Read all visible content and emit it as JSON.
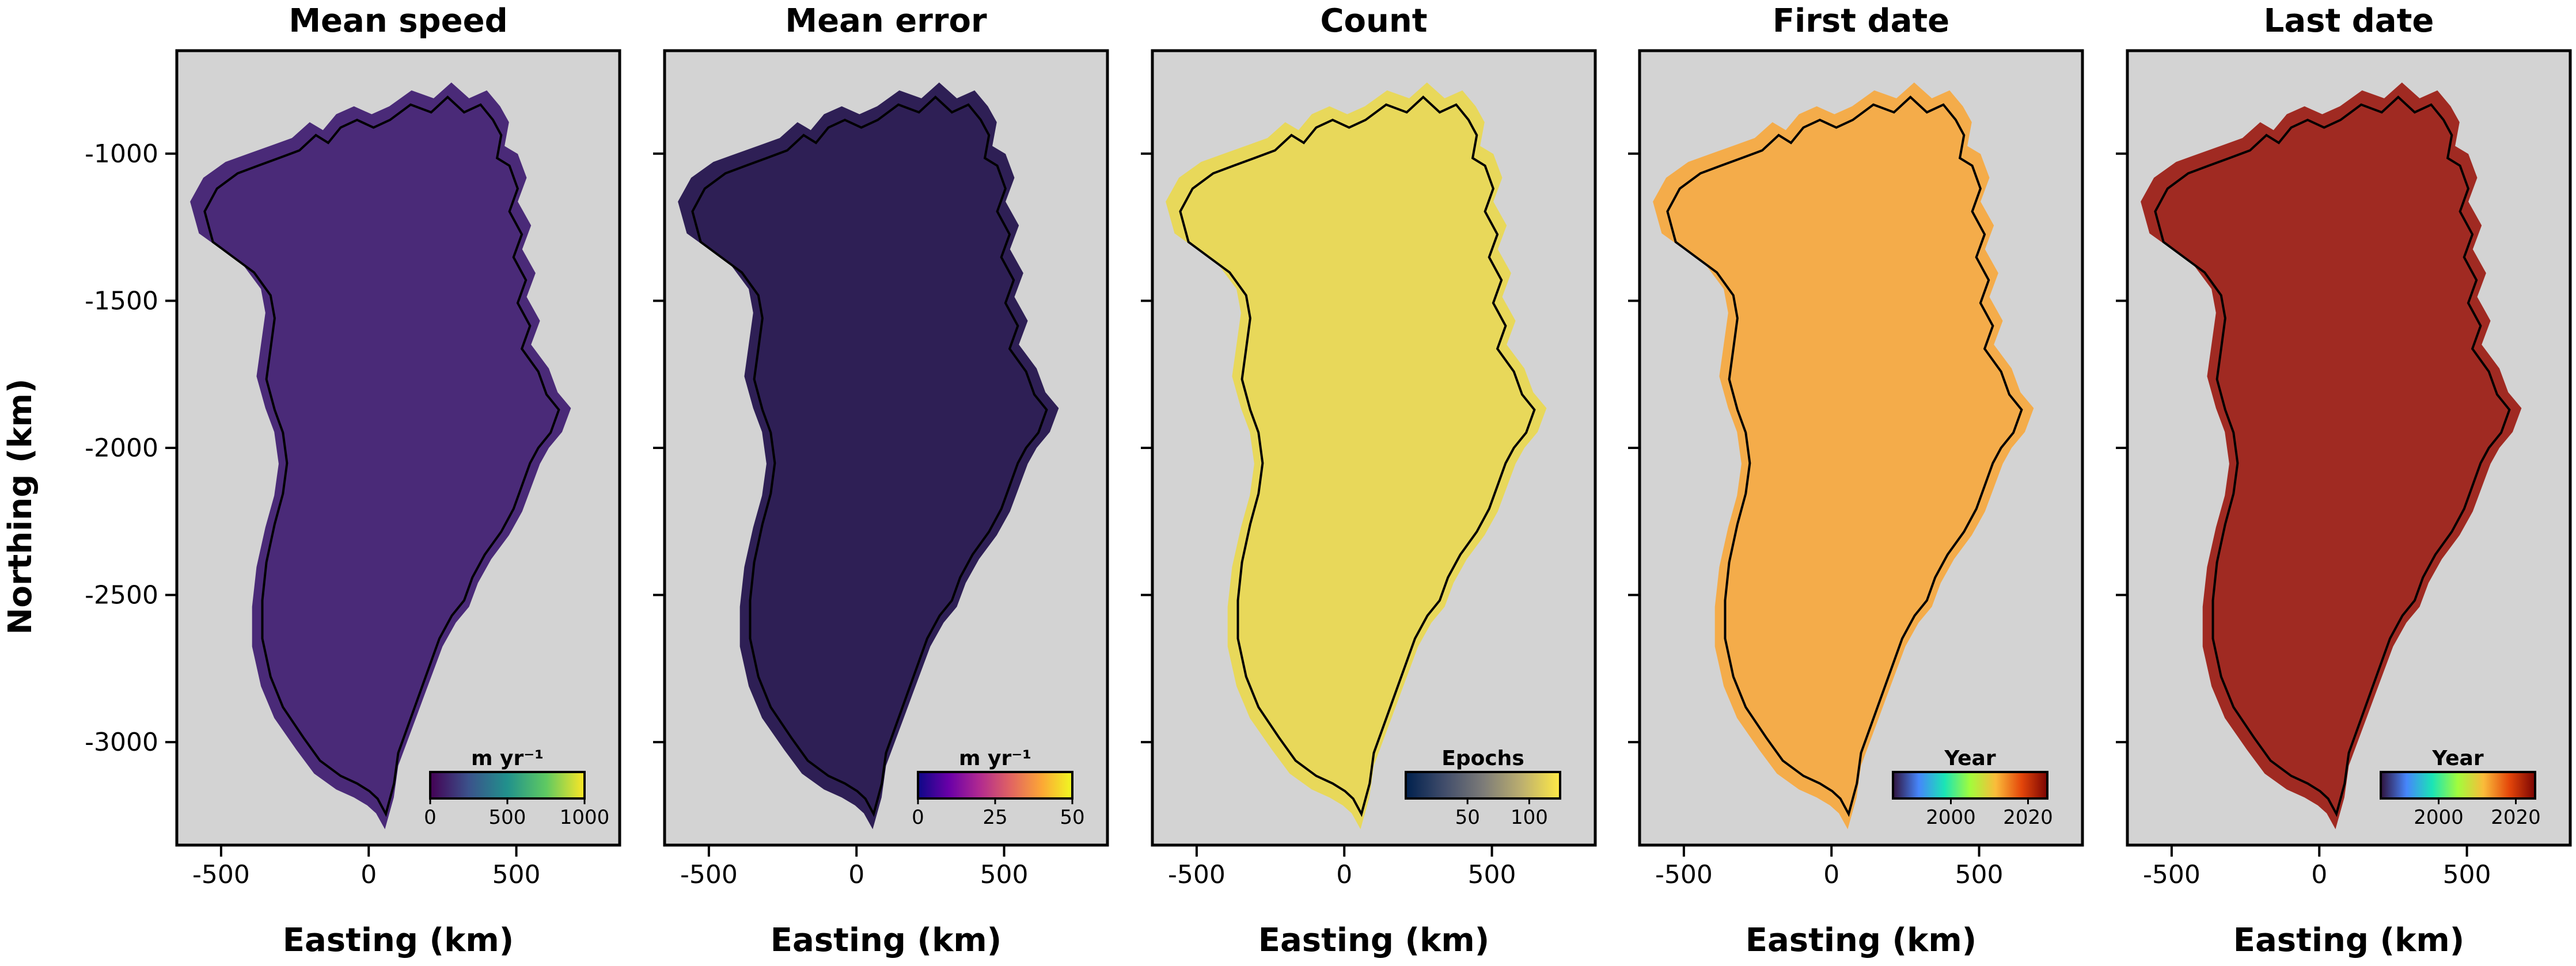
{
  "figure": {
    "ylabel": "Northing (km)",
    "xlabel": "Easting (km)"
  },
  "chart_data": [
    {
      "type": "heatmap",
      "title": "Mean speed",
      "xlabel": "Easting (km)",
      "ylabel": "Northing (km)",
      "x_ticks": [
        "-500",
        "0",
        "500"
      ],
      "y_ticks": [
        "-1000",
        "-1500",
        "-2000",
        "-2500",
        "-3000"
      ],
      "xlim": [
        -650,
        850
      ],
      "ylim": [
        -3350,
        -650
      ],
      "colorbar": {
        "label": "m yr⁻¹",
        "ticks": [
          "0",
          "500",
          "1000"
        ],
        "range": [
          0,
          1000
        ],
        "colormap": "viridis",
        "colors": [
          "#440154",
          "#3b528b",
          "#21918c",
          "#5ec962",
          "#fde725"
        ]
      },
      "fill_color": "#4a2a78",
      "background": "#d3d3d3",
      "grid": false
    },
    {
      "type": "heatmap",
      "title": "Mean error",
      "xlabel": "Easting (km)",
      "x_ticks": [
        "-500",
        "0",
        "500"
      ],
      "xlim": [
        -650,
        850
      ],
      "ylim": [
        -3350,
        -650
      ],
      "colorbar": {
        "label": "m yr⁻¹",
        "ticks": [
          "0",
          "25",
          "50"
        ],
        "range": [
          0,
          50
        ],
        "colormap": "inferno",
        "colors": [
          "#0d0887",
          "#6a00a8",
          "#b12a90",
          "#e16462",
          "#fca636",
          "#f0f921"
        ]
      },
      "fill_color": "#2e1f55",
      "background": "#d3d3d3",
      "grid": false
    },
    {
      "type": "heatmap",
      "title": "Count",
      "xlabel": "Easting (km)",
      "x_ticks": [
        "-500",
        "0",
        "500"
      ],
      "xlim": [
        -650,
        850
      ],
      "ylim": [
        -3350,
        -650
      ],
      "colorbar": {
        "label": "Epochs",
        "ticks": [
          "50",
          "100"
        ],
        "range": [
          0,
          125
        ],
        "colormap": "cividis",
        "colors": [
          "#00204d",
          "#414d6b",
          "#7c7b78",
          "#bcaf6f",
          "#ffea46"
        ]
      },
      "fill_color": "#e8d85a",
      "background": "#d3d3d3",
      "grid": false
    },
    {
      "type": "heatmap",
      "title": "First date",
      "xlabel": "Easting (km)",
      "x_ticks": [
        "-500",
        "0",
        "500"
      ],
      "xlim": [
        -650,
        850
      ],
      "ylim": [
        -3350,
        -650
      ],
      "colorbar": {
        "label": "Year",
        "ticks": [
          "2000",
          "2020"
        ],
        "range": [
          1985,
          2025
        ],
        "colormap": "turbo",
        "colors": [
          "#30123b",
          "#4686fb",
          "#1ae4b6",
          "#a2fc3c",
          "#fabb3a",
          "#e4460a",
          "#7a0403"
        ]
      },
      "fill_color": "#f4ac4a",
      "background": "#d3d3d3",
      "grid": false
    },
    {
      "type": "heatmap",
      "title": "Last date",
      "xlabel": "Easting (km)",
      "x_ticks": [
        "-500",
        "0",
        "500"
      ],
      "xlim": [
        -650,
        850
      ],
      "ylim": [
        -3350,
        -650
      ],
      "colorbar": {
        "label": "Year",
        "ticks": [
          "2000",
          "2020"
        ],
        "range": [
          1985,
          2025
        ],
        "colormap": "turbo",
        "colors": [
          "#30123b",
          "#4686fb",
          "#1ae4b6",
          "#a2fc3c",
          "#fabb3a",
          "#e4460a",
          "#7a0403"
        ]
      },
      "fill_color": "#a02a22",
      "background": "#d3d3d3",
      "grid": false
    }
  ]
}
